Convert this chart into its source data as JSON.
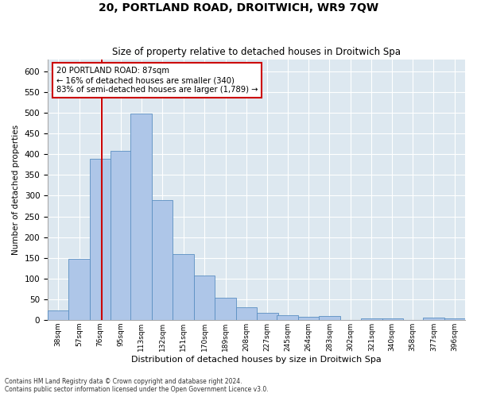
{
  "title_main": "20, PORTLAND ROAD, DROITWICH, WR9 7QW",
  "title_sub": "Size of property relative to detached houses in Droitwich Spa",
  "xlabel": "Distribution of detached houses by size in Droitwich Spa",
  "ylabel": "Number of detached properties",
  "annotation_line1": "20 PORTLAND ROAD: 87sqm",
  "annotation_line2": "← 16% of detached houses are smaller (340)",
  "annotation_line3": "83% of semi-detached houses are larger (1,789) →",
  "property_size_sqm": 87,
  "bin_edges": [
    38,
    57,
    76,
    95,
    113,
    132,
    151,
    170,
    189,
    208,
    227,
    245,
    264,
    283,
    302,
    321,
    340,
    358,
    377,
    396,
    415
  ],
  "bar_values": [
    23,
    148,
    390,
    408,
    498,
    290,
    158,
    108,
    53,
    30,
    16,
    12,
    7,
    10,
    0,
    4,
    4,
    0,
    5,
    3
  ],
  "bar_color": "#aec6e8",
  "bar_edge_color": "#5a8fc2",
  "vline_color": "#cc0000",
  "vline_x": 87,
  "ylim": [
    0,
    630
  ],
  "yticks": [
    0,
    50,
    100,
    150,
    200,
    250,
    300,
    350,
    400,
    450,
    500,
    550,
    600
  ],
  "background_color": "#dde8f0",
  "grid_color": "#ffffff",
  "footer_line1": "Contains HM Land Registry data © Crown copyright and database right 2024.",
  "footer_line2": "Contains public sector information licensed under the Open Government Licence v3.0."
}
